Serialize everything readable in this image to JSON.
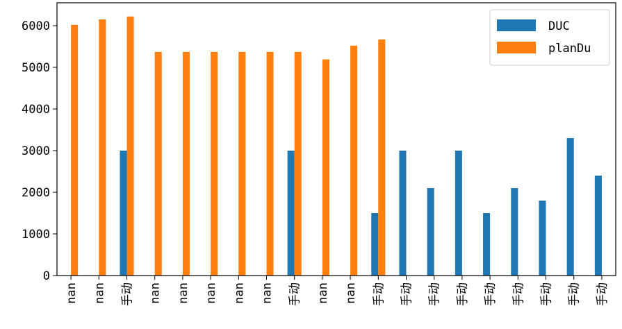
{
  "chart_data": {
    "type": "bar",
    "categories": [
      "nan",
      "nan",
      "手动",
      "nan",
      "nan",
      "nan",
      "nan",
      "nan",
      "手动",
      "nan",
      "nan",
      "手动",
      "手动",
      "手动",
      "手动",
      "手动",
      "手动",
      "手动",
      "手动",
      "手动"
    ],
    "series": [
      {
        "name": "DUC",
        "color": "#1f77b4",
        "values": [
          null,
          null,
          3000,
          null,
          null,
          null,
          null,
          null,
          3000,
          null,
          null,
          1500,
          3000,
          2100,
          3000,
          1500,
          2100,
          1800,
          3300,
          2400
        ]
      },
      {
        "name": "planDu",
        "color": "#ff7f0e",
        "values": [
          6020,
          6150,
          6220,
          5370,
          5370,
          5370,
          5370,
          5370,
          5370,
          5190,
          5520,
          5670,
          null,
          null,
          null,
          null,
          null,
          null,
          null,
          null
        ]
      }
    ],
    "y_ticks": [
      0,
      1000,
      2000,
      3000,
      4000,
      5000,
      6000
    ],
    "ylim": [
      0,
      6550
    ],
    "legend_position": "top-right",
    "grid": false,
    "title": "",
    "xlabel": "",
    "ylabel": ""
  }
}
